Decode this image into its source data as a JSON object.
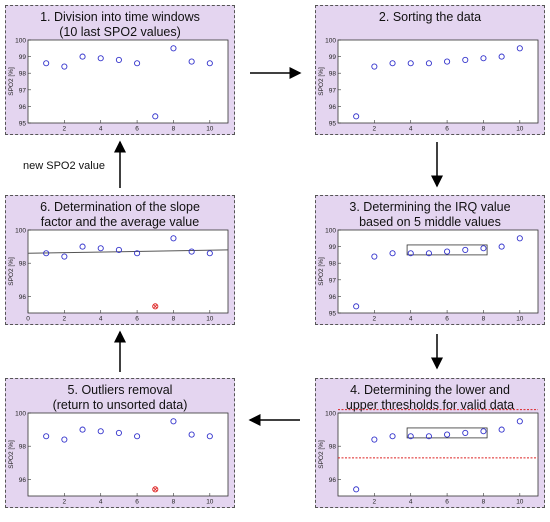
{
  "panels": [
    {
      "id": "p1",
      "title": "1. Division into time windows\n(10 last SPO2 values)",
      "chart": "window"
    },
    {
      "id": "p2",
      "title": "2. Sorting the data",
      "chart": "sorted"
    },
    {
      "id": "p3",
      "title": "3. Determining the IRQ value\nbased on 5 middle values",
      "chart": "irq"
    },
    {
      "id": "p4",
      "title": "4. Determining the lower and\nupper thresholds for valid data",
      "chart": "thresholds"
    },
    {
      "id": "p5",
      "title": "5. Outliers removal\n(return to unsorted data)",
      "chart": "outlier"
    },
    {
      "id": "p6",
      "title": "6. Determination of the slope\nfactor and the average value",
      "chart": "slope"
    }
  ],
  "arrow_label": "new SPO2 value",
  "colors": {
    "panel_header": "#e4d5f0",
    "marker": "#3333cc",
    "outlier": "#dd2222",
    "threshold": "#dd2222",
    "trend": "#555555"
  },
  "chart_data": [
    {
      "panel": "p1",
      "type": "scatter",
      "ylabel": "SPO2 [%]",
      "x": [
        1,
        2,
        3,
        4,
        5,
        6,
        7,
        8,
        9,
        10
      ],
      "y": [
        98.6,
        98.4,
        99.0,
        98.9,
        98.8,
        98.6,
        95.4,
        99.5,
        98.7,
        98.6
      ],
      "xlim": [
        0,
        11
      ],
      "ylim": [
        95,
        100
      ],
      "xticks": [
        2,
        4,
        6,
        8,
        10
      ],
      "yticks": [
        95,
        96,
        97,
        98,
        99,
        100
      ]
    },
    {
      "panel": "p2",
      "type": "scatter",
      "ylabel": "SPO2 [%]",
      "x": [
        1,
        2,
        3,
        4,
        5,
        6,
        7,
        8,
        9,
        10
      ],
      "y": [
        95.4,
        98.4,
        98.6,
        98.6,
        98.6,
        98.7,
        98.8,
        98.9,
        99.0,
        99.5
      ],
      "xlim": [
        0,
        11
      ],
      "ylim": [
        95,
        100
      ],
      "xticks": [
        2,
        4,
        6,
        8,
        10
      ],
      "yticks": [
        95,
        96,
        97,
        98,
        99,
        100
      ]
    },
    {
      "panel": "p3",
      "type": "scatter",
      "ylabel": "SPO2 [%]",
      "x": [
        1,
        2,
        3,
        4,
        5,
        6,
        7,
        8,
        9,
        10
      ],
      "y": [
        95.4,
        98.4,
        98.6,
        98.6,
        98.6,
        98.7,
        98.8,
        98.9,
        99.0,
        99.5
      ],
      "xlim": [
        0,
        11
      ],
      "ylim": [
        95,
        100
      ],
      "xticks": [
        2,
        4,
        6,
        8,
        10
      ],
      "yticks": [
        95,
        96,
        97,
        98,
        99,
        100
      ],
      "box": {
        "x": [
          3.8,
          8.2
        ],
        "y": [
          98.5,
          99.1
        ]
      }
    },
    {
      "panel": "p4",
      "type": "scatter",
      "ylabel": "SPO2 [%]",
      "x": [
        1,
        2,
        3,
        4,
        5,
        6,
        7,
        8,
        9,
        10
      ],
      "y": [
        95.4,
        98.4,
        98.6,
        98.6,
        98.6,
        98.7,
        98.8,
        98.9,
        99.0,
        99.5
      ],
      "xlim": [
        0,
        11
      ],
      "ylim": [
        95,
        100
      ],
      "xticks": [
        2,
        4,
        6,
        8,
        10
      ],
      "yticks": [
        96,
        98,
        100
      ],
      "box": {
        "x": [
          3.8,
          8.2
        ],
        "y": [
          98.5,
          99.1
        ]
      },
      "thresholds": [
        97.3,
        100.2
      ]
    },
    {
      "panel": "p5",
      "type": "scatter",
      "ylabel": "SPO2 [%]",
      "x": [
        1,
        2,
        3,
        4,
        5,
        6,
        8,
        9,
        10
      ],
      "y": [
        98.6,
        98.4,
        99.0,
        98.9,
        98.8,
        98.6,
        99.5,
        98.7,
        98.6
      ],
      "outlier": {
        "x": 7,
        "y": 95.4
      },
      "xlim": [
        0,
        11
      ],
      "ylim": [
        95,
        100
      ],
      "xticks": [
        2,
        4,
        6,
        8,
        10
      ],
      "yticks": [
        96,
        98,
        100
      ]
    },
    {
      "panel": "p6",
      "type": "scatter",
      "ylabel": "SPO2 [%]",
      "x": [
        1,
        2,
        3,
        4,
        5,
        6,
        8,
        9,
        10
      ],
      "y": [
        98.6,
        98.4,
        99.0,
        98.9,
        98.8,
        98.6,
        99.5,
        98.7,
        98.6
      ],
      "outlier": {
        "x": 7,
        "y": 95.4
      },
      "trend": [
        98.6,
        98.8
      ],
      "xlim": [
        0,
        11
      ],
      "ylim": [
        95,
        100
      ],
      "xticks": [
        0,
        2,
        4,
        6,
        8,
        10
      ],
      "yticks": [
        96,
        98,
        100
      ]
    }
  ]
}
